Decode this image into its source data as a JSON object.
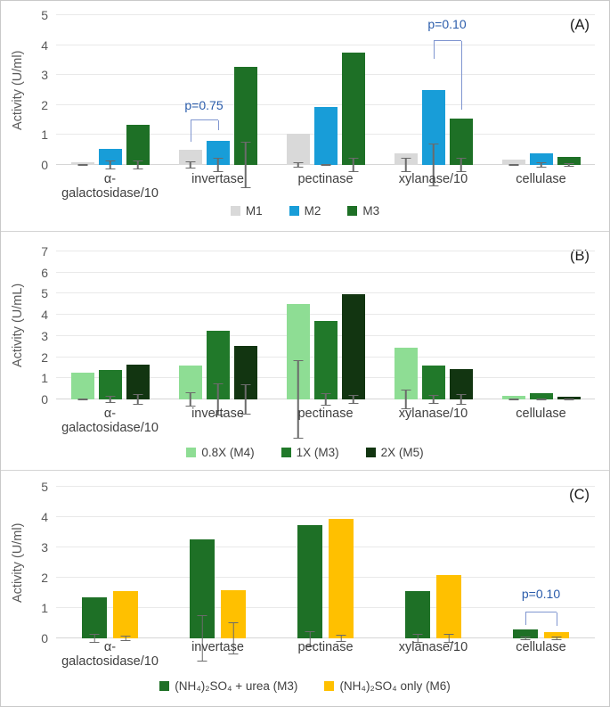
{
  "styles": {
    "annotation_color": "#2A5CAB",
    "bracket_color": "#8096D0",
    "error_color": "#6B6B6B",
    "grid_color": "#E9E9E9",
    "baseline_color": "#D6D6D6",
    "axis_text_color": "#595959",
    "category_text_color": "#3F3F3F",
    "legend_text_color": "#404040"
  },
  "chart_data": [
    {
      "type": "bar",
      "panel_tag": "(A)",
      "ylabel": "Activity (U/ml)",
      "ylim": [
        0,
        5
      ],
      "ytick_step": 1,
      "grid": true,
      "legend_position": "bottom",
      "categories": [
        "α-galactosidase/10",
        "invertase",
        "pectinase",
        "xylanase/10",
        "cellulase"
      ],
      "series": [
        {
          "name": "M1",
          "color": "#D9D9D9",
          "values": [
            0.1,
            0.5,
            1.05,
            0.4,
            0.18
          ],
          "errors": [
            0.02,
            0.13,
            0.08,
            0.25,
            0.02
          ]
        },
        {
          "name": "M2",
          "color": "#189DD8",
          "values": [
            0.55,
            0.8,
            1.93,
            2.5,
            0.4
          ],
          "errors": [
            0.16,
            0.25,
            0.04,
            0.72,
            0.08
          ]
        },
        {
          "name": "M3",
          "color": "#1E7026",
          "values": [
            1.35,
            3.27,
            3.75,
            1.55,
            0.27
          ],
          "errors": [
            0.14,
            0.78,
            0.25,
            0.25,
            0.05
          ]
        }
      ],
      "annotations": [
        {
          "text": "p=0.75",
          "category": 1,
          "series_pair": [
            0,
            1
          ],
          "top_y": 1.5,
          "left_y": 0.78,
          "right_y": 1.15,
          "text_y": 1.75
        },
        {
          "text": "p=0.10",
          "category": 3,
          "series_pair": [
            1,
            2
          ],
          "top_y": 4.13,
          "left_y": 3.55,
          "right_y": 1.85,
          "text_y": 4.45
        }
      ]
    },
    {
      "type": "bar",
      "panel_tag": "(B)",
      "ylabel": "Activity (U/mL)",
      "ylim": [
        0,
        7
      ],
      "ytick_step": 1,
      "grid": true,
      "legend_position": "bottom",
      "categories": [
        "α-galactosidase/10",
        "invertase",
        "pectinase",
        "xylanase/10",
        "cellulase"
      ],
      "series": [
        {
          "name": "0.8X (M4)",
          "color": "#8EDD94",
          "values": [
            1.25,
            1.6,
            4.5,
            2.45,
            0.15
          ],
          "errors": [
            0.05,
            0.35,
            1.85,
            0.45,
            0.04
          ]
        },
        {
          "name": "1X (M3)",
          "color": "#21792A",
          "values": [
            1.4,
            3.25,
            3.7,
            1.6,
            0.3
          ],
          "errors": [
            0.15,
            0.78,
            0.3,
            0.2,
            0.05
          ]
        },
        {
          "name": "2X (M5)",
          "color": "#123511",
          "values": [
            1.65,
            2.55,
            4.97,
            1.45,
            0.12
          ],
          "errors": [
            0.25,
            0.7,
            0.22,
            0.25,
            0.04
          ]
        }
      ],
      "annotations": []
    },
    {
      "type": "bar",
      "panel_tag": "(C)",
      "ylabel": "Activity (U/ml)",
      "ylim": [
        0,
        5
      ],
      "ytick_step": 1,
      "grid": true,
      "legend_position": "bottom",
      "categories": [
        "α-galactosidase/10",
        "invertase",
        "pectinase",
        "xylanase/10",
        "cellulase"
      ],
      "series": [
        {
          "name": "(NH₄)₂SO₄ + urea (M3)",
          "color": "#1E7026",
          "values": [
            1.35,
            3.27,
            3.75,
            1.55,
            0.3
          ],
          "errors": [
            0.15,
            0.77,
            0.25,
            0.15,
            0.06
          ]
        },
        {
          "name": "(NH₄)₂SO₄ only (M6)",
          "color": "#FFC000",
          "values": [
            1.55,
            1.58,
            3.95,
            2.1,
            0.22
          ],
          "errors": [
            0.1,
            0.52,
            0.12,
            0.15,
            0.05
          ]
        }
      ],
      "annotations": [
        {
          "text": "p=0.10",
          "category": 4,
          "series_pair": [
            0,
            1
          ],
          "top_y": 0.85,
          "left_y": 0.45,
          "right_y": 0.4,
          "text_y": 1.25
        }
      ]
    }
  ]
}
